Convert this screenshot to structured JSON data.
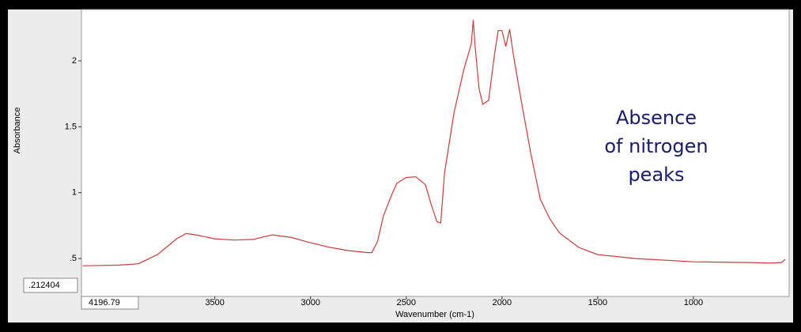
{
  "chart_data": {
    "type": "line",
    "y_label": "Absorbance",
    "x_label": "Wavenumber (cm-1)",
    "y_start_label": ".212404",
    "annotation_lines": [
      "Absence",
      "of nitrogen",
      "peaks"
    ],
    "xlim": [
      4196.79,
      500
    ],
    "ylim": [
      0.212404,
      2.39
    ],
    "xticks": [
      3500,
      3000,
      2500,
      2000,
      1500,
      1000
    ],
    "yticks": [
      {
        "value": 0.5,
        "label": ".5"
      },
      1,
      1.5,
      2
    ],
    "x": [
      4190,
      4000,
      3900,
      3800,
      3700,
      3650,
      3600,
      3500,
      3400,
      3300,
      3200,
      3100,
      3000,
      2900,
      2800,
      2700,
      2680,
      2650,
      2620,
      2580,
      2550,
      2500,
      2450,
      2400,
      2370,
      2340,
      2320,
      2300,
      2250,
      2200,
      2160,
      2150,
      2140,
      2120,
      2100,
      2070,
      2040,
      2020,
      2000,
      1980,
      1960,
      1940,
      1900,
      1850,
      1800,
      1750,
      1700,
      1600,
      1500,
      1300,
      1000,
      700,
      600,
      540,
      520
    ],
    "series": [
      {
        "color": "#d2383a",
        "values": [
          0.445,
          0.45,
          0.46,
          0.53,
          0.65,
          0.69,
          0.68,
          0.65,
          0.64,
          0.645,
          0.68,
          0.66,
          0.62,
          0.585,
          0.56,
          0.545,
          0.545,
          0.63,
          0.82,
          0.97,
          1.07,
          1.115,
          1.12,
          1.06,
          0.91,
          0.78,
          0.77,
          1.15,
          1.61,
          1.93,
          2.13,
          2.31,
          2.1,
          1.79,
          1.67,
          1.7,
          2.04,
          2.23,
          2.23,
          2.11,
          2.24,
          2.04,
          1.7,
          1.3,
          0.95,
          0.8,
          0.695,
          0.585,
          0.53,
          0.5,
          0.475,
          0.47,
          0.465,
          0.47,
          0.495
        ]
      }
    ]
  }
}
